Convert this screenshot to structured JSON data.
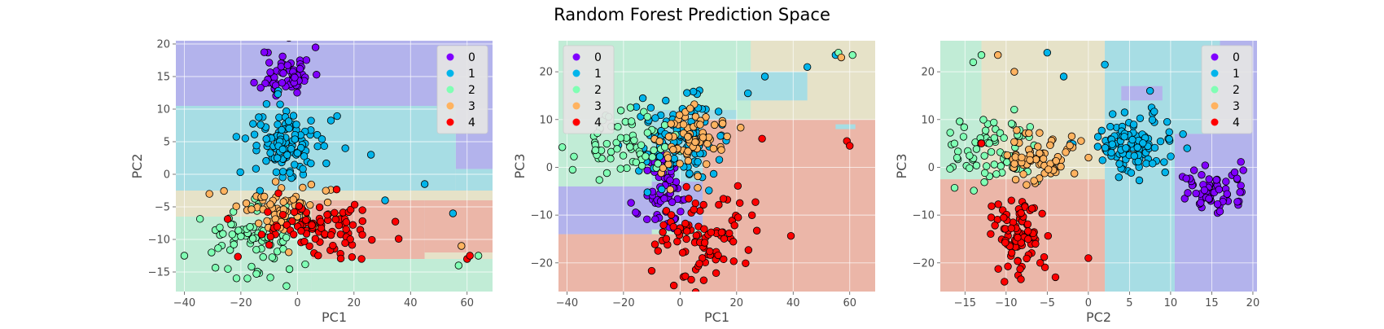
{
  "figure": {
    "title": "Random Forest Prediction Space"
  },
  "class_colors": {
    "0": "#8000ff",
    "1": "#00b5eb",
    "2": "#80ffb4",
    "3": "#ffb360",
    "4": "#ff0000"
  },
  "region_colors": {
    "0": "#b3b3ec",
    "1": "#a7dde4",
    "2": "#c1ecd6",
    "3": "#e6e2c8",
    "4": "#ebb6a8"
  },
  "chart_data": [
    {
      "type": "scatter",
      "title": "",
      "xlabel": "PC1",
      "ylabel": "PC2",
      "xlim": [
        -43,
        69
      ],
      "ylim": [
        -18,
        20.5
      ],
      "xticks": [
        -40,
        -20,
        0,
        20,
        40,
        60
      ],
      "yticks": [
        -15,
        -10,
        -5,
        0,
        5,
        10,
        15,
        20
      ],
      "legend": {
        "position": "top-right",
        "entries": [
          "0",
          "1",
          "2",
          "3",
          "4"
        ]
      },
      "grid": true,
      "decision_regions": [
        {
          "cls": "0",
          "x": [
            -43,
            69
          ],
          "y": [
            10.5,
            20.5
          ]
        },
        {
          "cls": "0",
          "x": [
            56,
            69
          ],
          "y": [
            0.8,
            10.5
          ]
        },
        {
          "cls": "1",
          "x": [
            -43,
            56
          ],
          "y": [
            -2.5,
            10.5
          ]
        },
        {
          "cls": "1",
          "x": [
            56,
            69
          ],
          "y": [
            -2.5,
            0.8
          ]
        },
        {
          "cls": "3",
          "x": [
            -43,
            20
          ],
          "y": [
            -6.5,
            -2.5
          ]
        },
        {
          "cls": "3",
          "x": [
            20,
            69
          ],
          "y": [
            -4,
            -2.5
          ]
        },
        {
          "cls": "2",
          "x": [
            -43,
            5
          ],
          "y": [
            -18,
            -6.5
          ]
        },
        {
          "cls": "4",
          "x": [
            5,
            45
          ],
          "y": [
            -13,
            -4
          ]
        },
        {
          "cls": "4",
          "x": [
            45,
            69
          ],
          "y": [
            -12,
            -4
          ]
        },
        {
          "cls": "3",
          "x": [
            45,
            69
          ],
          "y": [
            -13,
            -12
          ]
        },
        {
          "cls": "2",
          "x": [
            5,
            69
          ],
          "y": [
            -18,
            -13
          ]
        }
      ],
      "series": [
        {
          "name": "0",
          "cluster": {
            "cx": -4,
            "cy": 15.5,
            "sx": 4.5,
            "sy": 2,
            "n": 60,
            "seed": 11
          },
          "points": []
        },
        {
          "name": "1",
          "cluster": {
            "cx": -3,
            "cy": 4.5,
            "sx": 7,
            "sy": 3.2,
            "n": 110,
            "seed": 12
          },
          "points": [
            [
              26,
              3
            ],
            [
              31,
              -4
            ],
            [
              55,
              -6
            ],
            [
              45,
              -1.5
            ]
          ]
        },
        {
          "name": "2",
          "cluster": {
            "cx": -16,
            "cy": -10,
            "sx": 8,
            "sy": 3,
            "n": 75,
            "seed": 13
          },
          "points": [
            [
              -40,
              -12.5
            ],
            [
              57,
              -14
            ],
            [
              64,
              -12.5
            ]
          ]
        },
        {
          "name": "3",
          "cluster": {
            "cx": -2,
            "cy": -5.5,
            "sx": 10,
            "sy": 2,
            "n": 70,
            "seed": 14
          },
          "points": [
            [
              58,
              -11
            ]
          ]
        },
        {
          "name": "4",
          "cluster": {
            "cx": 10,
            "cy": -8,
            "sx": 11,
            "sy": 2.2,
            "n": 90,
            "seed": 15
          },
          "points": [
            [
              60,
              -13
            ],
            [
              61,
              -12.5
            ]
          ]
        }
      ]
    },
    {
      "type": "scatter",
      "title": "",
      "xlabel": "PC1",
      "ylabel": "PC3",
      "xlim": [
        -43,
        69
      ],
      "ylim": [
        -26,
        26.5
      ],
      "xticks": [
        -40,
        -20,
        0,
        20,
        40,
        60
      ],
      "yticks": [
        -20,
        -10,
        0,
        10,
        20
      ],
      "legend": {
        "position": "top-left",
        "entries": [
          "0",
          "1",
          "2",
          "3",
          "4"
        ]
      },
      "grid": true,
      "decision_regions": [
        {
          "cls": "2",
          "x": [
            -43,
            69
          ],
          "y": [
            -26,
            26.5
          ]
        },
        {
          "cls": "3",
          "x": [
            25,
            69
          ],
          "y": [
            10,
            26.5
          ]
        },
        {
          "cls": "1",
          "x": [
            20,
            45
          ],
          "y": [
            14,
            20
          ]
        },
        {
          "cls": "1",
          "x": [
            -10,
            20
          ],
          "y": [
            -3,
            12
          ]
        },
        {
          "cls": "0",
          "x": [
            -43,
            -10
          ],
          "y": [
            -14,
            -4
          ]
        },
        {
          "cls": "0",
          "x": [
            -10,
            8
          ],
          "y": [
            -13,
            -3
          ]
        },
        {
          "cls": "4",
          "x": [
            8,
            69
          ],
          "y": [
            -26,
            10
          ]
        },
        {
          "cls": "4",
          "x": [
            -43,
            8
          ],
          "y": [
            -26,
            -14
          ]
        },
        {
          "cls": "1",
          "x": [
            55,
            62
          ],
          "y": [
            8,
            9
          ]
        }
      ],
      "series": [
        {
          "name": "0",
          "cluster": {
            "cx": -5,
            "cy": -6,
            "sx": 4,
            "sy": 4,
            "n": 60,
            "seed": 21
          },
          "points": []
        },
        {
          "name": "1",
          "cluster": {
            "cx": -1,
            "cy": 6,
            "sx": 7,
            "sy": 4,
            "n": 110,
            "seed": 22
          },
          "points": [
            [
              30,
              19
            ],
            [
              45,
              21
            ],
            [
              55,
              23.5
            ],
            [
              24,
              15.5
            ]
          ]
        },
        {
          "name": "2",
          "cluster": {
            "cx": -20,
            "cy": 5,
            "sx": 8,
            "sy": 3,
            "n": 75,
            "seed": 23
          },
          "points": [
            [
              -38,
              -0.5
            ],
            [
              61,
              23.5
            ],
            [
              56,
              24
            ]
          ]
        },
        {
          "name": "3",
          "cluster": {
            "cx": 3,
            "cy": 5,
            "sx": 6,
            "sy": 4,
            "n": 70,
            "seed": 24
          },
          "points": [
            [
              57,
              23
            ]
          ]
        },
        {
          "name": "4",
          "cluster": {
            "cx": 10,
            "cy": -15,
            "sx": 9,
            "sy": 4,
            "n": 90,
            "seed": 25
          },
          "points": [
            [
              29,
              6
            ],
            [
              59,
              5.5
            ],
            [
              60,
              4.5
            ]
          ]
        }
      ]
    },
    {
      "type": "scatter",
      "title": "",
      "xlabel": "PC2",
      "ylabel": "PC3",
      "xlim": [
        -18,
        20.5
      ],
      "ylim": [
        -26,
        26.5
      ],
      "xticks": [
        -15,
        -10,
        -5,
        0,
        5,
        10,
        15,
        20
      ],
      "yticks": [
        -20,
        -10,
        0,
        10,
        20
      ],
      "legend": {
        "position": "top-right",
        "entries": [
          "0",
          "1",
          "2",
          "3",
          "4"
        ]
      },
      "grid": true,
      "decision_regions": [
        {
          "cls": "2",
          "x": [
            -18,
            -6
          ],
          "y": [
            -2.5,
            26.5
          ]
        },
        {
          "cls": "3",
          "x": [
            -13,
            2
          ],
          "y": [
            -5,
            26.5
          ]
        },
        {
          "cls": "1",
          "x": [
            2,
            10.5
          ],
          "y": [
            -26,
            26.5
          ]
        },
        {
          "cls": "1",
          "x": [
            10.5,
            20.5
          ],
          "y": [
            7,
            26.5
          ]
        },
        {
          "cls": "0",
          "x": [
            10.5,
            20.5
          ],
          "y": [
            -26,
            7
          ]
        },
        {
          "cls": "0",
          "x": [
            16,
            20.5
          ],
          "y": [
            7,
            26.5
          ]
        },
        {
          "cls": "4",
          "x": [
            -18,
            2
          ],
          "y": [
            -26,
            -2.5
          ]
        },
        {
          "cls": "0",
          "x": [
            4,
            9
          ],
          "y": [
            14,
            17
          ]
        }
      ],
      "series": [
        {
          "name": "0",
          "cluster": {
            "cx": 15,
            "cy": -5,
            "sx": 2.2,
            "sy": 2.5,
            "n": 60,
            "seed": 31
          },
          "points": []
        },
        {
          "name": "1",
          "cluster": {
            "cx": 5,
            "cy": 5,
            "sx": 2.6,
            "sy": 3.2,
            "n": 110,
            "seed": 32
          },
          "points": [
            [
              -5,
              24
            ],
            [
              -3,
              19
            ],
            [
              2,
              21.5
            ],
            [
              7.5,
              16
            ]
          ]
        },
        {
          "name": "2",
          "cluster": {
            "cx": -12,
            "cy": 3,
            "sx": 2.5,
            "sy": 3.5,
            "n": 75,
            "seed": 33
          },
          "points": [
            [
              -14,
              22
            ],
            [
              -13,
              23.5
            ]
          ]
        },
        {
          "name": "3",
          "cluster": {
            "cx": -6,
            "cy": 2,
            "sx": 2.5,
            "sy": 3,
            "n": 70,
            "seed": 34
          },
          "points": [
            [
              -11,
              23.5
            ],
            [
              -9,
              20
            ]
          ]
        },
        {
          "name": "4",
          "cluster": {
            "cx": -8.5,
            "cy": -14,
            "sx": 1.6,
            "sy": 4.5,
            "n": 90,
            "seed": 35
          },
          "points": [
            [
              -13,
              5
            ],
            [
              -4,
              -23
            ],
            [
              0,
              -19
            ]
          ]
        }
      ]
    }
  ]
}
